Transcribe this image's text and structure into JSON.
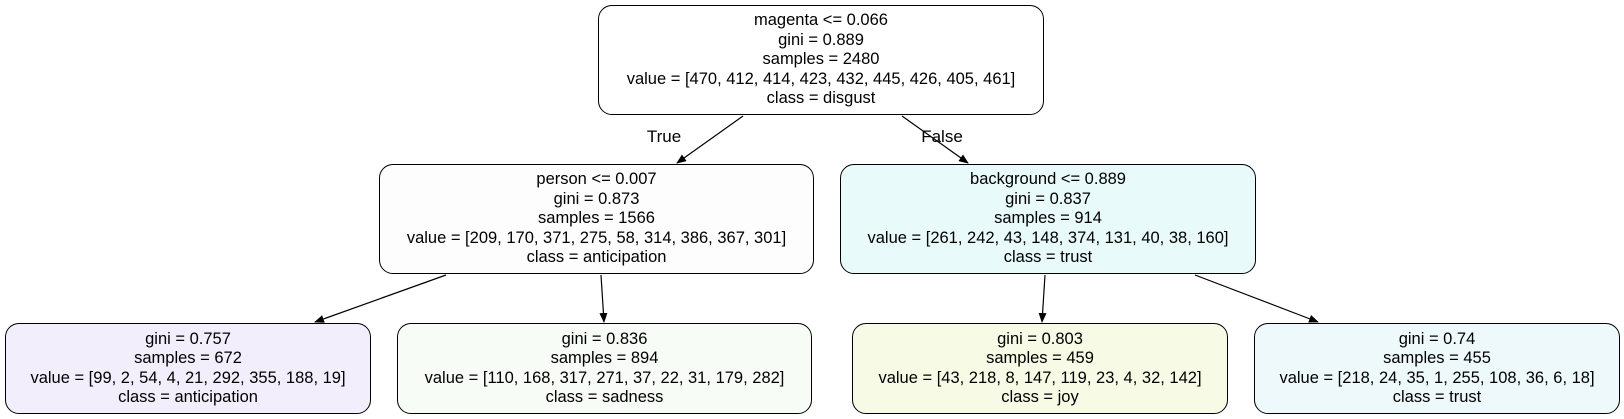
{
  "tree": {
    "nodes": [
      {
        "id": "root",
        "lines": [
          "magenta <= 0.066",
          "gini = 0.889",
          "samples = 2480",
          "value = [470, 412, 414, 423, 432, 445, 426, 405, 461]",
          "class = disgust"
        ],
        "fill": "#ffffff"
      },
      {
        "id": "left",
        "lines": [
          "person <= 0.007",
          "gini = 0.873",
          "samples = 1566",
          "value = [209, 170, 371, 275, 58, 314, 386, 367, 301]",
          "class = anticipation"
        ],
        "fill": "#fdfdfd"
      },
      {
        "id": "right",
        "lines": [
          "background <= 0.889",
          "gini = 0.837",
          "samples = 914",
          "value = [261, 242, 43, 148, 374, 131, 40, 38, 160]",
          "class = trust"
        ],
        "fill": "#e9fafa"
      },
      {
        "id": "leaf1",
        "lines": [
          "gini = 0.757",
          "samples = 672",
          "value = [99, 2, 54, 4, 21, 292, 355, 188, 19]",
          "class = anticipation"
        ],
        "fill": "#f3eefc"
      },
      {
        "id": "leaf2",
        "lines": [
          "gini = 0.836",
          "samples = 894",
          "value = [110, 168, 317, 271, 37, 22, 31, 179, 282]",
          "class = sadness"
        ],
        "fill": "#f8fcf6"
      },
      {
        "id": "leaf3",
        "lines": [
          "gini = 0.803",
          "samples = 459",
          "value = [43, 218, 8, 147, 119, 23, 4, 32, 142]",
          "class = joy"
        ],
        "fill": "#f7fae5"
      },
      {
        "id": "leaf4",
        "lines": [
          "gini = 0.74",
          "samples = 455",
          "value = [218, 24, 35, 1, 255, 108, 36, 6, 18]",
          "class = trust"
        ],
        "fill": "#eef9fb"
      }
    ],
    "edges": [
      {
        "from": "root",
        "to": "left",
        "label": "True"
      },
      {
        "from": "root",
        "to": "right",
        "label": "False"
      },
      {
        "from": "left",
        "to": "leaf1",
        "label": ""
      },
      {
        "from": "left",
        "to": "leaf2",
        "label": ""
      },
      {
        "from": "right",
        "to": "leaf3",
        "label": ""
      },
      {
        "from": "right",
        "to": "leaf4",
        "label": ""
      }
    ]
  }
}
